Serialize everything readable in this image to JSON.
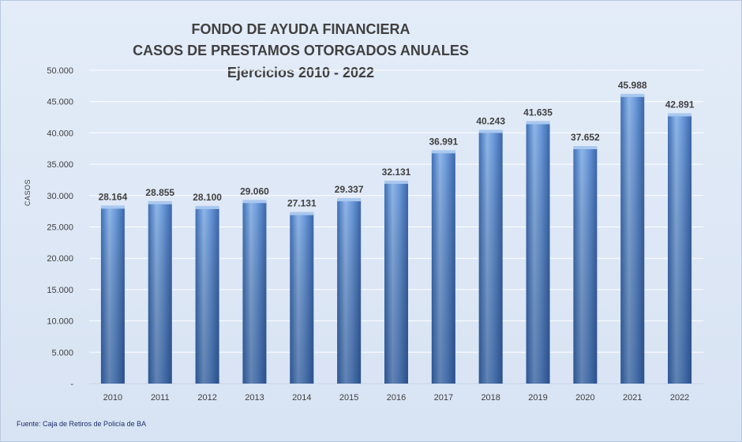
{
  "chart_data": {
    "type": "bar",
    "title": "FONDO DE AYUDA FINANCIERA",
    "subtitle": "CASOS DE PRESTAMOS  OTORGADOS  ANUALES",
    "subtitle2": "Ejercicios  2010 - 2022",
    "xlabel": "",
    "ylabel": "CASOS",
    "categories": [
      "2010",
      "2011",
      "2012",
      "2013",
      "2014",
      "2015",
      "2016",
      "2017",
      "2018",
      "2019",
      "2020",
      "2021",
      "2022"
    ],
    "values": [
      28164,
      28855,
      28100,
      29060,
      27131,
      29337,
      32131,
      36991,
      40243,
      41635,
      37652,
      45988,
      42891
    ],
    "value_labels": [
      "28.164",
      "28.855",
      "28.100",
      "29.060",
      "27.131",
      "29.337",
      "32.131",
      "36.991",
      "40.243",
      "41.635",
      "37.652",
      "45.988",
      "42.891"
    ],
    "ylim": [
      0,
      50000
    ],
    "yticks": [
      0,
      5000,
      10000,
      15000,
      20000,
      25000,
      30000,
      35000,
      40000,
      45000,
      50000
    ],
    "ytick_labels": [
      "-",
      "5.000",
      "10.000",
      "15.000",
      "20.000",
      "25.000",
      "30.000",
      "35.000",
      "40.000",
      "45.000",
      "50.000"
    ],
    "grid": true,
    "legend": "none",
    "colors": {
      "bar_light": "#8fb4e6",
      "bar_mid": "#5b8fd6",
      "bar_dark": "#3a6bb5",
      "grid": "#ffffff",
      "text": "#404040"
    }
  },
  "footer": {
    "source": "Fuente: Caja de Retiros de Policía de BA"
  }
}
